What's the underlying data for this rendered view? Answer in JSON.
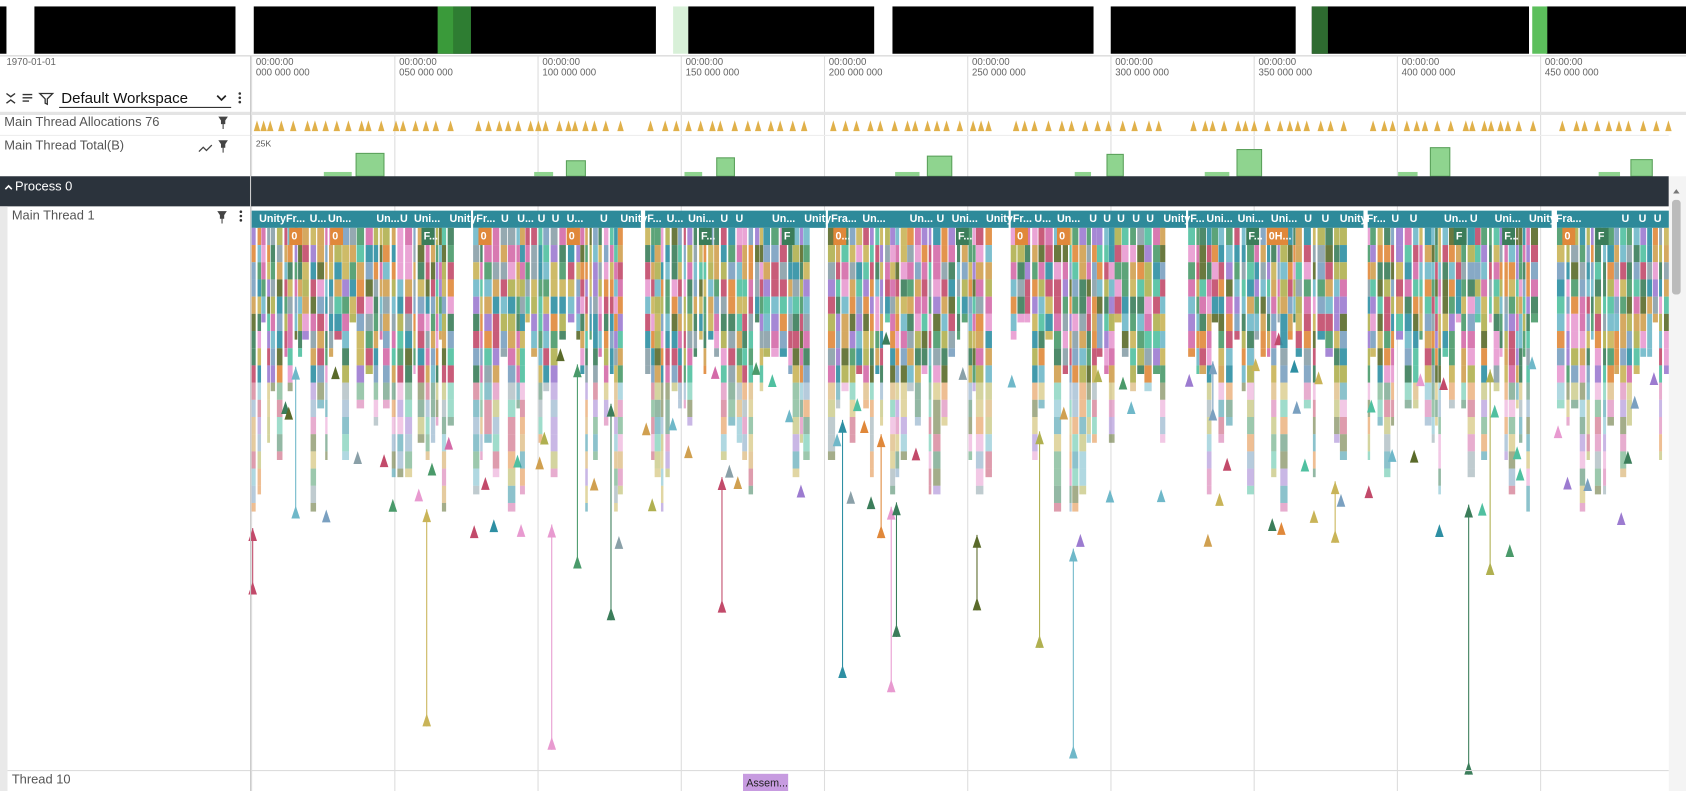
{
  "timeline": {
    "date": "1970-01-01",
    "ticks": [
      {
        "time": "00:00:00",
        "offset": "000 000 000"
      },
      {
        "time": "00:00:00",
        "offset": "050 000 000"
      },
      {
        "time": "00:00:00",
        "offset": "100 000 000"
      },
      {
        "time": "00:00:00",
        "offset": "150 000 000"
      },
      {
        "time": "00:00:00",
        "offset": "200 000 000"
      },
      {
        "time": "00:00:00",
        "offset": "250 000 000"
      },
      {
        "time": "00:00:00",
        "offset": "300 000 000"
      },
      {
        "time": "00:00:00",
        "offset": "350 000 000"
      },
      {
        "time": "00:00:00",
        "offset": "400 000 000"
      },
      {
        "time": "00:00:00",
        "offset": "450 000 000"
      }
    ]
  },
  "toolbar": {
    "workspace": "Default Workspace"
  },
  "tracks": {
    "allocations": "Main Thread Allocations 76",
    "total": "Main Thread Total(B)",
    "total_scale": "25K",
    "process": "Process 0",
    "main_thread": "Main Thread 1",
    "thread10": "Thread 10",
    "thread10_slice": "Assem..."
  },
  "main_thread_slices": [
    "UnityFr...",
    "U...",
    "Un...",
    "Un...",
    "U",
    "Uni...",
    "UnityFr...",
    "U",
    "U...",
    "U",
    "U",
    "U...",
    "U",
    "UnityF...",
    "U...",
    "Uni...",
    "U",
    "U",
    "Un...",
    "UnityFra...",
    "Un...",
    "Un...",
    "U",
    "Uni...",
    "UnityFr...",
    "U...",
    "Un...",
    "U",
    "U",
    "U",
    "U",
    "U",
    "UnityF...",
    "Uni...",
    "Uni...",
    "Uni...",
    "U",
    "U",
    "UnityFr...",
    "U",
    "U",
    "Un...",
    "U",
    "Uni...",
    "UnityFra...",
    "U",
    "U",
    "U"
  ],
  "main_thread_sub": [
    "0",
    "0",
    "F...",
    "0",
    "0",
    "F...",
    "F",
    "0...",
    "F...",
    "0",
    "0",
    "F...",
    "0H...",
    "F",
    "F...",
    "0",
    "F"
  ]
}
